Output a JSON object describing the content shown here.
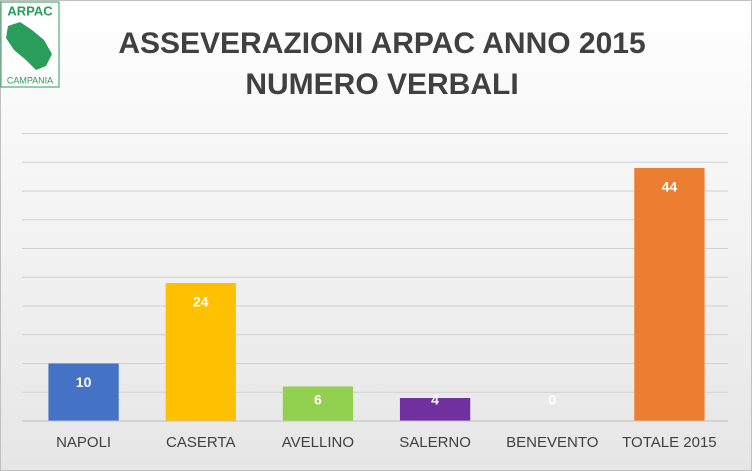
{
  "logo": {
    "top": "ARPAC",
    "bottom": "CAMPANIA"
  },
  "chart_data": {
    "type": "bar",
    "title": "ASSEVERAZIONI ARPAC ANNO 2015",
    "subtitle": "NUMERO VERBALI",
    "categories": [
      "NAPOLI",
      "CASERTA",
      "AVELLINO",
      "SALERNO",
      "BENEVENTO",
      "TOTALE 2015"
    ],
    "values": [
      10,
      24,
      6,
      4,
      0,
      44
    ],
    "colors": [
      "#4472c4",
      "#ffc000",
      "#92d050",
      "#7030a0",
      "#a5a5a5",
      "#ed7d31"
    ],
    "ylim": [
      0,
      50
    ],
    "yticks": [
      0,
      5,
      10,
      15,
      20,
      25,
      30,
      35,
      40,
      45,
      50
    ],
    "grid": true
  }
}
